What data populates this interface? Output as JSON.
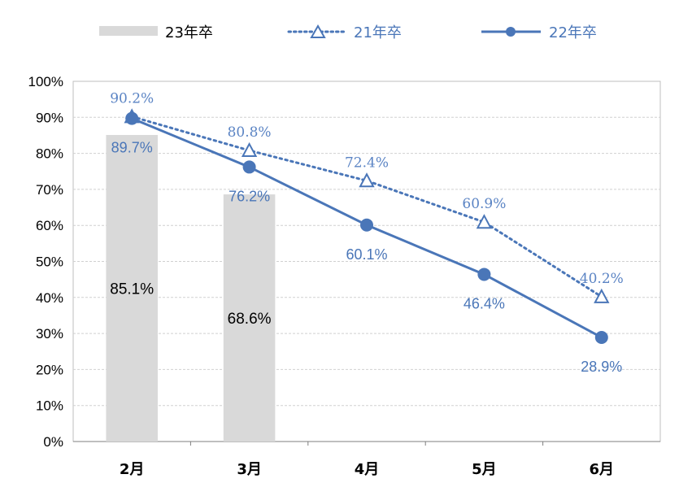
{
  "chart_data": {
    "type": "bar+line",
    "categories": [
      "2月",
      "3月",
      "4月",
      "5月",
      "6月"
    ],
    "ylim": [
      0,
      100
    ],
    "yticks": [
      "0%",
      "10%",
      "20%",
      "30%",
      "40%",
      "50%",
      "60%",
      "70%",
      "80%",
      "90%",
      "100%"
    ],
    "grid": true,
    "legend_position": "top",
    "series": [
      {
        "name": "23年卒",
        "type": "bar",
        "color": "#d9d9d9",
        "values": [
          85.1,
          68.6,
          null,
          null,
          null
        ],
        "labels": [
          "85.1%",
          "68.6%",
          "",
          "",
          ""
        ]
      },
      {
        "name": "21年卒",
        "type": "line",
        "style": "dotted",
        "marker": "open-triangle",
        "color": "#4a76b8",
        "values": [
          90.2,
          80.8,
          72.4,
          60.9,
          40.2
        ],
        "labels": [
          "90.2%",
          "80.8%",
          "72.4%",
          "60.9%",
          "40.2%"
        ]
      },
      {
        "name": "22年卒",
        "type": "line",
        "style": "solid",
        "marker": "filled-circle",
        "color": "#4a76b8",
        "values": [
          89.7,
          76.2,
          60.1,
          46.4,
          28.9
        ],
        "labels": [
          "89.7%",
          "76.2%",
          "60.1%",
          "46.4%",
          "28.9%"
        ]
      }
    ]
  }
}
